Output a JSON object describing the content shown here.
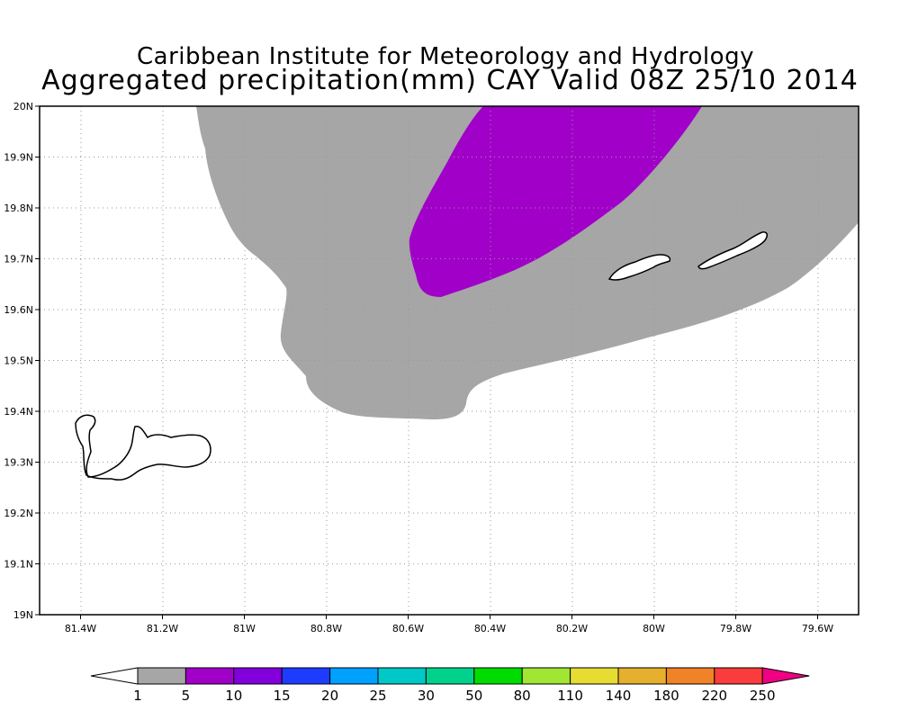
{
  "title_line1": "Caribbean Institute for Meteorology and Hydrology",
  "title_line2": "Aggregated precipitation(mm) CAY Valid 08Z 25/10 2014",
  "map": {
    "lon_min": -81.5,
    "lon_max": -79.5,
    "lat_min": 19.0,
    "lat_max": 20.0,
    "grid": "dotted",
    "lon_ticks": [
      {
        "value": -81.4,
        "label": "81.4W"
      },
      {
        "value": -81.2,
        "label": "81.2W"
      },
      {
        "value": -81.0,
        "label": "81W"
      },
      {
        "value": -80.8,
        "label": "80.8W"
      },
      {
        "value": -80.6,
        "label": "80.6W"
      },
      {
        "value": -80.4,
        "label": "80.4W"
      },
      {
        "value": -80.2,
        "label": "80.2W"
      },
      {
        "value": -80.0,
        "label": "80W"
      },
      {
        "value": -79.8,
        "label": "79.8W"
      },
      {
        "value": -79.6,
        "label": "79.6W"
      }
    ],
    "lat_ticks": [
      {
        "value": 20.0,
        "label": "20N"
      },
      {
        "value": 19.9,
        "label": "19.9N"
      },
      {
        "value": 19.8,
        "label": "19.8N"
      },
      {
        "value": 19.7,
        "label": "19.7N"
      },
      {
        "value": 19.6,
        "label": "19.6N"
      },
      {
        "value": 19.5,
        "label": "19.5N"
      },
      {
        "value": 19.4,
        "label": "19.4N"
      },
      {
        "value": 19.3,
        "label": "19.3N"
      },
      {
        "value": 19.2,
        "label": "19.2N"
      },
      {
        "value": 19.1,
        "label": "19.1N"
      },
      {
        "value": 19.0,
        "label": "19N"
      }
    ],
    "precip_areas": [
      {
        "range": "1-5 mm",
        "color": "#a6a6a6"
      },
      {
        "range": "5-10 mm",
        "color": "#a000c8"
      }
    ],
    "islands": [
      "Grand Cayman",
      "Little Cayman",
      "Cayman Brac"
    ]
  },
  "colorbar": {
    "colors": [
      "#ffffff",
      "#a6a6a6",
      "#a000c8",
      "#8200dc",
      "#1e3cff",
      "#00a0ff",
      "#00c8c8",
      "#00d28c",
      "#00dc00",
      "#a0e632",
      "#e6dc32",
      "#e6af2d",
      "#f08228",
      "#fa3c3c",
      "#f00082"
    ],
    "labels": [
      "1",
      "5",
      "10",
      "15",
      "20",
      "25",
      "30",
      "50",
      "80",
      "110",
      "140",
      "180",
      "220",
      "250"
    ]
  }
}
